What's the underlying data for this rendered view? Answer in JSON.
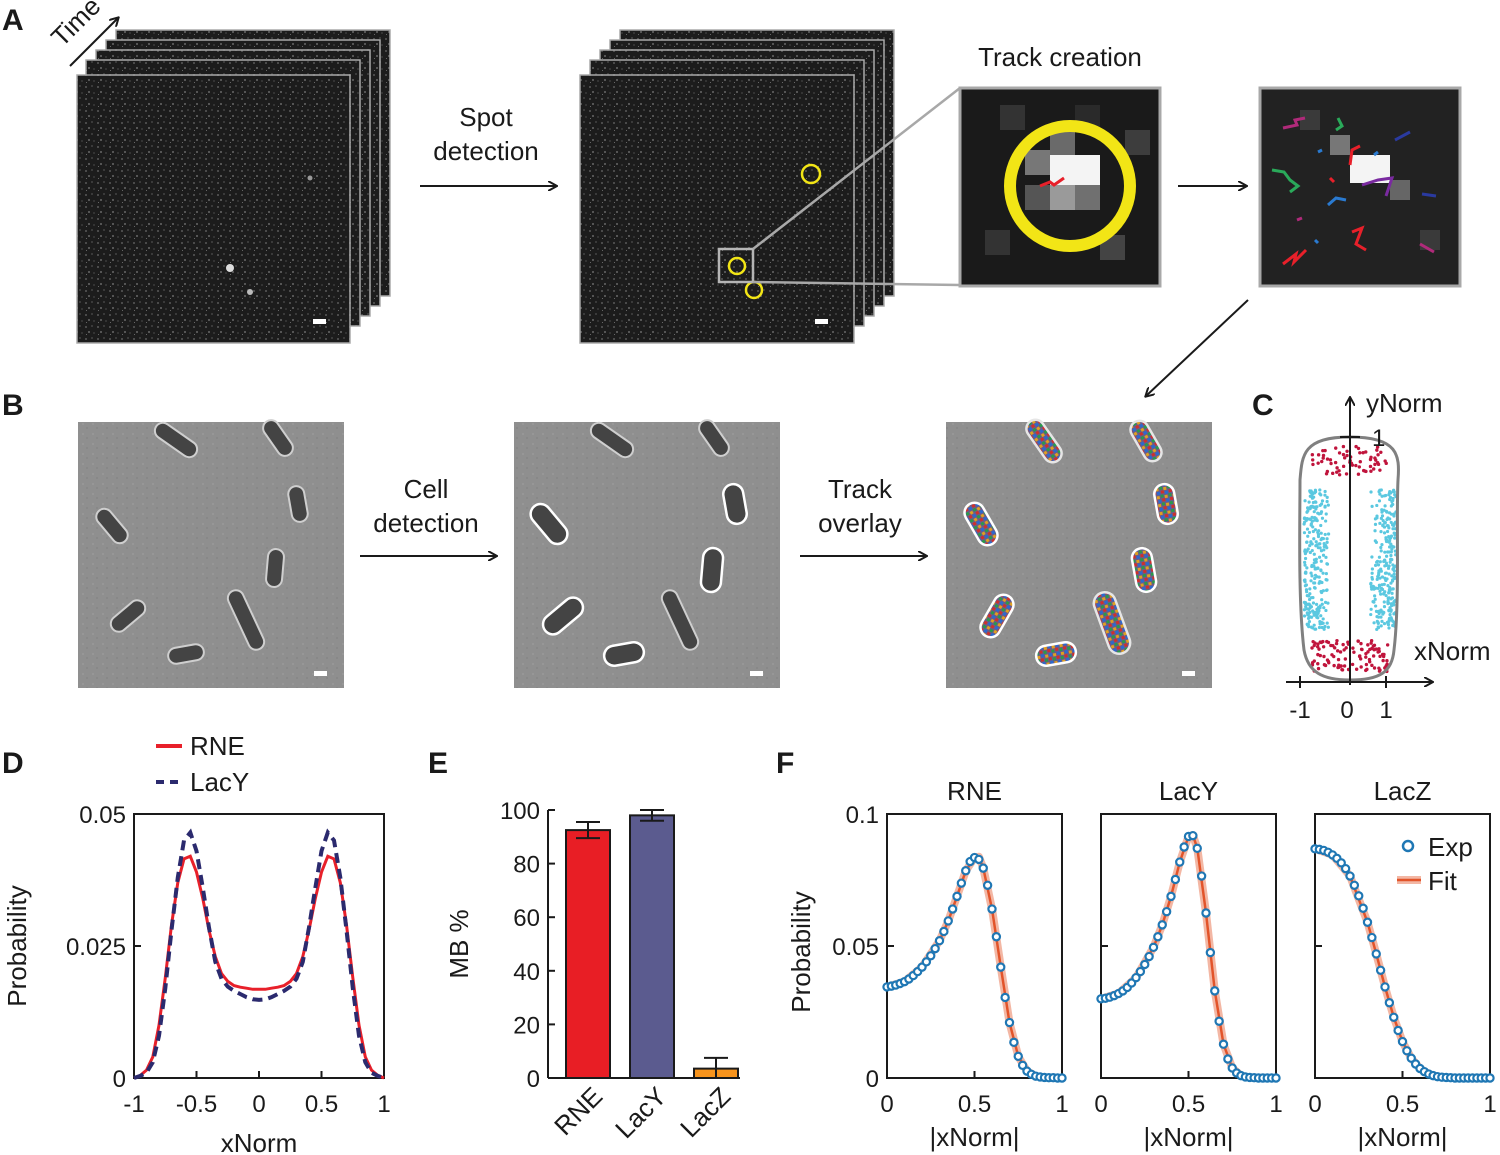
{
  "panel_labels": {
    "a": "A",
    "b": "B",
    "c": "C",
    "d": "D",
    "e": "E",
    "f": "F"
  },
  "panel_a": {
    "time_label": "Time",
    "step1_line1": "Spot",
    "step1_line2": "detection",
    "zoom_title": "Track creation"
  },
  "panel_b": {
    "step1_line1": "Cell",
    "step1_line2": "detection",
    "step2_line1": "Track",
    "step2_line2": "overlay"
  },
  "panel_c": {
    "y_axis": "yNorm",
    "x_axis": "xNorm",
    "y_tick": "1",
    "x_ticks": [
      "-1",
      "0",
      "1"
    ],
    "colors": {
      "outline": "#808080",
      "polar": "#c0143c",
      "membrane": "#5bc8e0"
    }
  },
  "chart_data": [
    {
      "id": "D",
      "type": "line",
      "xlabel": "xNorm",
      "ylabel": "Probability",
      "xlim": [
        -1,
        1
      ],
      "ylim": [
        0,
        0.05
      ],
      "x_ticks": [
        "-1",
        "-0.5",
        "0",
        "0.5",
        "1"
      ],
      "y_ticks": [
        "0",
        "0.025",
        "0.05"
      ],
      "legend": "top-left",
      "series": [
        {
          "name": "RNE",
          "color": "#e8202a",
          "style": "solid",
          "x": [
            -1,
            -0.95,
            -0.9,
            -0.85,
            -0.8,
            -0.75,
            -0.7,
            -0.65,
            -0.6,
            -0.55,
            -0.5,
            -0.45,
            -0.4,
            -0.35,
            -0.3,
            -0.25,
            -0.2,
            -0.15,
            -0.1,
            -0.05,
            0,
            0.05,
            0.1,
            0.15,
            0.2,
            0.25,
            0.3,
            0.35,
            0.4,
            0.45,
            0.5,
            0.55,
            0.6,
            0.65,
            0.7,
            0.75,
            0.8,
            0.85,
            0.9,
            0.95,
            1
          ],
          "y": [
            0,
            0.0005,
            0.0015,
            0.004,
            0.01,
            0.019,
            0.029,
            0.037,
            0.0415,
            0.042,
            0.039,
            0.034,
            0.028,
            0.023,
            0.0198,
            0.0183,
            0.0175,
            0.0172,
            0.017,
            0.0168,
            0.0168,
            0.0168,
            0.017,
            0.0172,
            0.0175,
            0.0183,
            0.0198,
            0.023,
            0.028,
            0.034,
            0.039,
            0.042,
            0.0415,
            0.037,
            0.029,
            0.019,
            0.01,
            0.004,
            0.0015,
            0.0005,
            0
          ]
        },
        {
          "name": "LacY",
          "color": "#2b2a6e",
          "style": "dashed",
          "x": [
            -1,
            -0.95,
            -0.9,
            -0.85,
            -0.8,
            -0.75,
            -0.7,
            -0.65,
            -0.6,
            -0.55,
            -0.5,
            -0.45,
            -0.4,
            -0.35,
            -0.3,
            -0.25,
            -0.2,
            -0.15,
            -0.1,
            -0.05,
            0,
            0.05,
            0.1,
            0.15,
            0.2,
            0.25,
            0.3,
            0.35,
            0.4,
            0.45,
            0.5,
            0.55,
            0.6,
            0.65,
            0.7,
            0.75,
            0.8,
            0.85,
            0.9,
            0.95,
            1
          ],
          "y": [
            0,
            0.0004,
            0.001,
            0.003,
            0.008,
            0.017,
            0.028,
            0.038,
            0.045,
            0.0465,
            0.043,
            0.036,
            0.0285,
            0.022,
            0.0188,
            0.0173,
            0.0165,
            0.0159,
            0.0153,
            0.0149,
            0.0148,
            0.0149,
            0.0153,
            0.0159,
            0.0165,
            0.0173,
            0.0188,
            0.022,
            0.0285,
            0.036,
            0.043,
            0.0465,
            0.045,
            0.038,
            0.028,
            0.017,
            0.008,
            0.003,
            0.001,
            0.0004,
            0
          ]
        }
      ]
    },
    {
      "id": "E",
      "type": "bar",
      "ylabel": "MB %",
      "ylim": [
        0,
        100
      ],
      "y_ticks": [
        "0",
        "20",
        "40",
        "60",
        "80",
        "100"
      ],
      "categories": [
        "RNE",
        "LacY",
        "LacZ"
      ],
      "values": [
        92.5,
        98,
        3.5
      ],
      "errors": [
        3,
        2,
        4
      ],
      "colors": [
        "#e81e25",
        "#5b5b8f",
        "#f7941d"
      ]
    },
    {
      "id": "F1",
      "type": "line",
      "title": "RNE",
      "xlabel": "|xNorm|",
      "ylabel": "Probability",
      "xlim": [
        0,
        1
      ],
      "ylim": [
        0,
        0.1
      ],
      "x_ticks": [
        "0",
        "0.5",
        "1"
      ],
      "y_ticks": [
        "0",
        "0.05",
        "0.1"
      ],
      "series": [
        {
          "name": "Exp",
          "x": [
            0,
            0.025,
            0.05,
            0.075,
            0.1,
            0.125,
            0.15,
            0.175,
            0.2,
            0.225,
            0.25,
            0.275,
            0.3,
            0.325,
            0.35,
            0.375,
            0.4,
            0.425,
            0.45,
            0.475,
            0.5,
            0.525,
            0.55,
            0.575,
            0.6,
            0.625,
            0.65,
            0.675,
            0.7,
            0.725,
            0.75,
            0.775,
            0.8,
            0.825,
            0.85,
            0.875,
            0.9,
            0.925,
            0.95,
            0.975,
            1
          ],
          "y": [
            0.0345,
            0.0348,
            0.0352,
            0.0358,
            0.0365,
            0.0375,
            0.0388,
            0.0403,
            0.042,
            0.044,
            0.0463,
            0.049,
            0.052,
            0.0555,
            0.0595,
            0.064,
            0.0688,
            0.0738,
            0.0785,
            0.082,
            0.0835,
            0.0828,
            0.0795,
            0.073,
            0.064,
            0.0535,
            0.042,
            0.0305,
            0.021,
            0.0135,
            0.0082,
            0.0048,
            0.0026,
            0.0014,
            0.0007,
            0.0004,
            0.0002,
            0.0001,
            0.0001,
            0,
            0
          ]
        },
        {
          "name": "Fit",
          "x": [
            0,
            0.1,
            0.2,
            0.3,
            0.35,
            0.4,
            0.45,
            0.5,
            0.525,
            0.55,
            0.6,
            0.65,
            0.7,
            0.75,
            0.8,
            0.85,
            0.9,
            1
          ],
          "y": [
            0.0345,
            0.0365,
            0.042,
            0.052,
            0.0595,
            0.0688,
            0.0785,
            0.0835,
            0.0838,
            0.0795,
            0.064,
            0.042,
            0.021,
            0.0082,
            0.0026,
            0.0007,
            0.0002,
            0
          ]
        }
      ]
    },
    {
      "id": "F2",
      "type": "line",
      "title": "LacY",
      "xlabel": "|xNorm|",
      "ylabel": "",
      "xlim": [
        0,
        1
      ],
      "ylim": [
        0,
        0.1
      ],
      "x_ticks": [
        "0",
        "0.5",
        "1"
      ],
      "y_ticks": [],
      "series": [
        {
          "name": "Exp",
          "x": [
            0,
            0.025,
            0.05,
            0.075,
            0.1,
            0.125,
            0.15,
            0.175,
            0.2,
            0.225,
            0.25,
            0.275,
            0.3,
            0.325,
            0.35,
            0.375,
            0.4,
            0.425,
            0.45,
            0.475,
            0.5,
            0.525,
            0.55,
            0.575,
            0.6,
            0.625,
            0.65,
            0.675,
            0.7,
            0.725,
            0.75,
            0.775,
            0.8,
            0.825,
            0.85,
            0.875,
            0.9,
            0.925,
            0.95,
            0.975,
            1
          ],
          "y": [
            0.03,
            0.0302,
            0.0306,
            0.0312,
            0.032,
            0.033,
            0.0343,
            0.036,
            0.038,
            0.0403,
            0.043,
            0.046,
            0.0495,
            0.0535,
            0.058,
            0.063,
            0.0688,
            0.0752,
            0.0818,
            0.0875,
            0.0915,
            0.0918,
            0.087,
            0.0765,
            0.0625,
            0.0475,
            0.033,
            0.0215,
            0.0128,
            0.0072,
            0.0038,
            0.0019,
            0.0009,
            0.0004,
            0.0002,
            0.0001,
            0,
            0,
            0,
            0,
            0
          ]
        },
        {
          "name": "Fit",
          "x": [
            0,
            0.1,
            0.2,
            0.3,
            0.35,
            0.4,
            0.45,
            0.5,
            0.525,
            0.55,
            0.6,
            0.65,
            0.7,
            0.75,
            0.8,
            0.85,
            1
          ],
          "y": [
            0.03,
            0.032,
            0.038,
            0.0495,
            0.058,
            0.0688,
            0.0818,
            0.0915,
            0.092,
            0.087,
            0.0625,
            0.033,
            0.0128,
            0.0038,
            0.0009,
            0.0002,
            0
          ]
        }
      ]
    },
    {
      "id": "F3",
      "type": "line",
      "title": "LacZ",
      "xlabel": "|xNorm|",
      "ylabel": "",
      "xlim": [
        0,
        1
      ],
      "ylim": [
        0,
        0.1
      ],
      "x_ticks": [
        "0",
        "0.5",
        "1"
      ],
      "y_ticks": [],
      "legend": "top-right",
      "series": [
        {
          "name": "Exp",
          "x": [
            0,
            0.025,
            0.05,
            0.075,
            0.1,
            0.125,
            0.15,
            0.175,
            0.2,
            0.225,
            0.25,
            0.275,
            0.3,
            0.325,
            0.35,
            0.375,
            0.4,
            0.425,
            0.45,
            0.475,
            0.5,
            0.525,
            0.55,
            0.575,
            0.6,
            0.625,
            0.65,
            0.675,
            0.7,
            0.725,
            0.75,
            0.775,
            0.8,
            0.825,
            0.85,
            0.875,
            0.9,
            0.925,
            0.95,
            0.975,
            1
          ],
          "y": [
            0.0868,
            0.0866,
            0.0862,
            0.0855,
            0.0845,
            0.0832,
            0.0815,
            0.0793,
            0.0765,
            0.073,
            0.069,
            0.0643,
            0.059,
            0.0532,
            0.047,
            0.0408,
            0.0345,
            0.0285,
            0.023,
            0.018,
            0.0138,
            0.0103,
            0.0075,
            0.0053,
            0.0036,
            0.0024,
            0.0015,
            0.0009,
            0.0005,
            0.0003,
            0.0002,
            0.0001,
            0,
            0,
            0,
            0,
            0,
            0,
            0,
            0,
            0
          ]
        },
        {
          "name": "Fit",
          "x": [
            0,
            0.1,
            0.2,
            0.3,
            0.35,
            0.4,
            0.45,
            0.5,
            0.55,
            0.6,
            0.65,
            0.7,
            0.8,
            1
          ],
          "y": [
            0.0868,
            0.0845,
            0.0765,
            0.059,
            0.047,
            0.0345,
            0.023,
            0.0138,
            0.0075,
            0.0036,
            0.0015,
            0.0005,
            0,
            0
          ]
        }
      ]
    }
  ]
}
